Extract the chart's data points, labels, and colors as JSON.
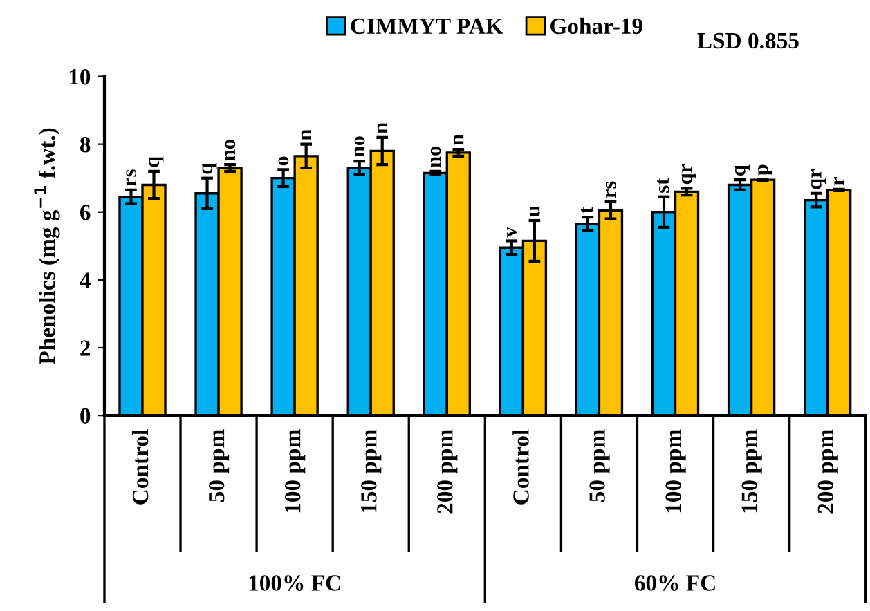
{
  "chart_data": {
    "type": "bar",
    "ylabel": "Phenolics (mg g$^{−1}$ f.wt.)",
    "categories": [
      "Control",
      "50 ppm",
      "100 ppm",
      "150 ppm",
      "200 ppm",
      "Control",
      "50 ppm",
      "100 ppm",
      "150 ppm",
      "200 ppm"
    ],
    "series": [
      {
        "name": "CIMMYT PAK",
        "color": "#00b0f0",
        "values": [
          6.45,
          6.55,
          7.0,
          7.3,
          7.15,
          4.95,
          5.65,
          6.0,
          6.8,
          6.35
        ],
        "errors": [
          0.2,
          0.45,
          0.25,
          0.2,
          0.05,
          0.2,
          0.2,
          0.45,
          0.15,
          0.2
        ],
        "value_labels": [
          "rs",
          "q",
          "o",
          "no",
          "no",
          "v",
          "t",
          "st",
          "q",
          "qr"
        ]
      },
      {
        "name": "Gohar-19",
        "color": "#ffc000",
        "values": [
          6.8,
          7.3,
          7.65,
          7.8,
          7.75,
          5.15,
          6.05,
          6.6,
          6.95,
          6.65
        ],
        "errors": [
          0.4,
          0.1,
          0.35,
          0.4,
          0.1,
          0.6,
          0.25,
          0.1,
          0.02,
          0.02
        ],
        "value_labels": [
          "q",
          "no",
          "n",
          "n",
          "n",
          "u",
          "rs",
          "qr",
          "p",
          "r"
        ]
      }
    ],
    "annotations": [
      "100% FC",
      "60% FC",
      "LSD 0.855"
    ],
    "ylim": [
      0,
      10
    ],
    "yticks": [
      0,
      2,
      4,
      6,
      8,
      10
    ],
    "grid": false,
    "legend": "top"
  }
}
